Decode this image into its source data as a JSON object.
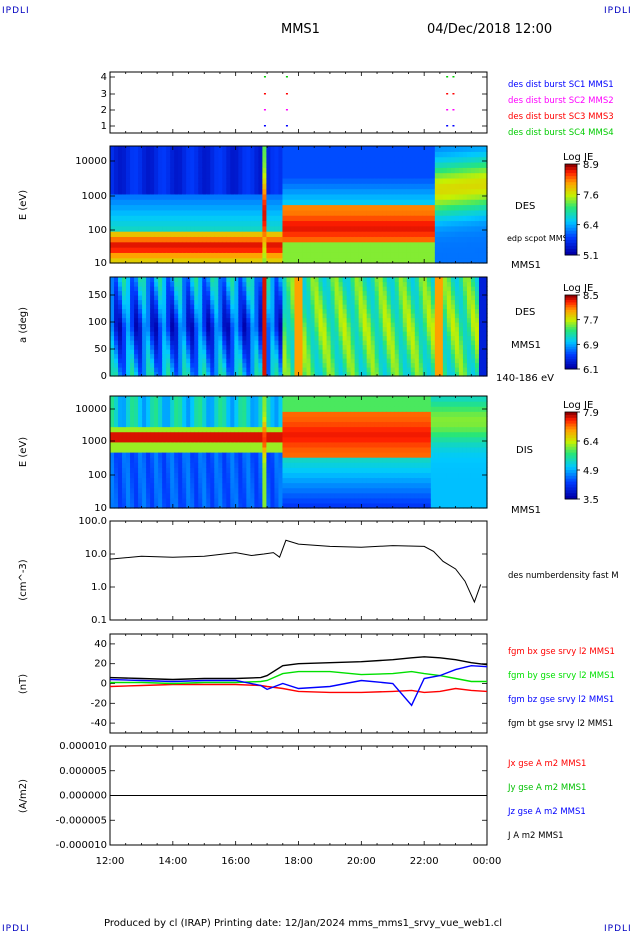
{
  "header": {
    "corner_label": "IPDLI",
    "mission": "MMS1",
    "datetime": "04/Dec/2018 12:00"
  },
  "footer": {
    "text": "Produced by cl (IRAP)   Printing date: 12/Jan/2024   mms_mms1_srvy_vue_web1.cl"
  },
  "colors": {
    "mms1": "#0000ff",
    "mms2": "#ff00ff",
    "mms3": "#ff0000",
    "mms4": "#00cc00",
    "bx": "#ff0000",
    "by": "#00e000",
    "bz": "#0000ff",
    "bt": "#000000",
    "jx": "#ff0000",
    "jy": "#00c000",
    "jz": "#0000ff",
    "jt": "#000000"
  },
  "chart_data": [
    {
      "type": "scatter",
      "panel": "burst-availability",
      "y_ticks": [
        "4",
        "3",
        "2",
        "1"
      ],
      "legend": [
        {
          "label": "des dist burst SC1 MMS1",
          "color": "#0000ff"
        },
        {
          "label": "des dist burst SC2 MMS2",
          "color": "#ff00ff"
        },
        {
          "label": "des dist burst SC3 MMS3",
          "color": "#ff0000"
        },
        {
          "label": "des dist burst SC4 MMS4",
          "color": "#00cc00"
        }
      ],
      "marks_hours": [
        16.9,
        17.6,
        22.7,
        22.9
      ]
    },
    {
      "type": "heatmap",
      "panel": "des-energy",
      "ylabel": "E (eV)",
      "y_ticks": [
        "10000",
        "1000",
        "100",
        "10"
      ],
      "side_labels": [
        "DES",
        "edp scpot MMS1",
        "MMS1"
      ],
      "colorbar": {
        "title": "Log JE",
        "ticks": [
          "8.9",
          "7.6",
          "6.4",
          "5.1"
        ]
      }
    },
    {
      "type": "heatmap",
      "panel": "des-pitch-angle",
      "ylabel": "a (deg)",
      "y_ticks": [
        "150",
        "100",
        "50",
        "0"
      ],
      "side_labels": [
        "DES",
        "MMS1",
        "140-186 eV"
      ],
      "colorbar": {
        "title": "Log JE",
        "ticks": [
          "8.5",
          "7.7",
          "6.9",
          "6.1"
        ]
      }
    },
    {
      "type": "heatmap",
      "panel": "dis-energy",
      "ylabel": "E (eV)",
      "y_ticks": [
        "10000",
        "1000",
        "100",
        "10"
      ],
      "side_labels": [
        "DIS",
        "MMS1"
      ],
      "colorbar": {
        "title": "Log JE",
        "ticks": [
          "7.9",
          "6.4",
          "4.9",
          "3.5"
        ]
      }
    },
    {
      "type": "line",
      "panel": "density",
      "ylabel": "(cm^-3)",
      "y_ticks": [
        "100.0",
        "10.0",
        "1.0",
        "0.1"
      ],
      "yscale": "log",
      "ylim": [
        0.1,
        100
      ],
      "legend": [
        {
          "label": "des numberdensity fast M",
          "color": "#000000"
        }
      ],
      "x": [
        12.0,
        13.0,
        14.0,
        15.0,
        16.0,
        16.5,
        16.9,
        17.2,
        17.4,
        17.6,
        18.0,
        19.0,
        20.0,
        21.0,
        22.0,
        22.3,
        22.6,
        23.0,
        23.3,
        23.6,
        23.8
      ],
      "y": [
        7.0,
        8.5,
        8.0,
        8.5,
        11.0,
        9.0,
        10.0,
        11.0,
        8.0,
        26.0,
        20.0,
        17.0,
        16.0,
        18.0,
        17.0,
        12.0,
        6.0,
        3.5,
        1.5,
        0.35,
        1.2
      ]
    },
    {
      "type": "line",
      "panel": "magnetic-field",
      "ylabel": "(nT)",
      "y_ticks": [
        "40",
        "20",
        "0",
        "-20",
        "-40"
      ],
      "ylim": [
        -50,
        50
      ],
      "legend": [
        {
          "label": "fgm bx gse srvy l2 MMS1",
          "color": "#ff0000"
        },
        {
          "label": "fgm by gse srvy l2 MMS1",
          "color": "#00e000"
        },
        {
          "label": "fgm bz gse srvy l2 MMS1",
          "color": "#0000ff"
        },
        {
          "label": "fgm bt gse srvy l2 MMS1",
          "color": "#000000"
        }
      ],
      "x": [
        12.0,
        13.0,
        14.0,
        15.0,
        16.0,
        16.8,
        17.0,
        17.5,
        18.0,
        19.0,
        20.0,
        21.0,
        21.6,
        22.0,
        22.5,
        23.0,
        23.5,
        24.0
      ],
      "series": [
        {
          "name": "fgm bx gse srvy l2 MMS1",
          "values": [
            -3,
            -2,
            -1,
            -1,
            -1,
            -2,
            -3,
            -5,
            -8,
            -9,
            -9,
            -8,
            -7,
            -9,
            -8,
            -5,
            -7,
            -8
          ]
        },
        {
          "name": "fgm by gse srvy l2 MMS1",
          "values": [
            1,
            1,
            0,
            1,
            1,
            2,
            3,
            10,
            12,
            12,
            9,
            10,
            12,
            10,
            8,
            5,
            2,
            2
          ]
        },
        {
          "name": "fgm bz gse srvy l2 MMS1",
          "values": [
            4,
            3,
            2,
            3,
            3,
            -2,
            -6,
            0,
            -5,
            -3,
            3,
            0,
            -22,
            5,
            8,
            14,
            18,
            17
          ]
        },
        {
          "name": "fgm bt gse srvy l2 MMS1",
          "values": [
            6,
            5,
            4,
            5,
            5,
            6,
            8,
            18,
            20,
            21,
            22,
            24,
            26,
            27,
            26,
            24,
            21,
            19
          ]
        }
      ]
    },
    {
      "type": "line",
      "panel": "current-density",
      "ylabel": "(A/m2)",
      "y_ticks": [
        "0.000010",
        "0.000005",
        "0.000000",
        "-0.000005",
        "-0.000010"
      ],
      "ylim": [
        -1e-05,
        1e-05
      ],
      "legend": [
        {
          "label": "Jx gse A m2 MMS1",
          "color": "#ff0000"
        },
        {
          "label": "Jy gse A m2 MMS1",
          "color": "#00c000"
        },
        {
          "label": "Jz gse A m2 MMS1",
          "color": "#0000ff"
        },
        {
          "label": "J A m2 MMS1",
          "color": "#000000"
        }
      ],
      "x": [
        12.0,
        24.0
      ],
      "series": [
        {
          "name": "J A m2 MMS1",
          "values": [
            0,
            0
          ]
        }
      ]
    },
    {
      "type": "axis",
      "panel": "time-axis",
      "x_ticks": [
        "12:00",
        "14:00",
        "16:00",
        "18:00",
        "20:00",
        "22:00",
        "00:00"
      ],
      "xlim_hours": [
        12,
        24
      ]
    }
  ]
}
